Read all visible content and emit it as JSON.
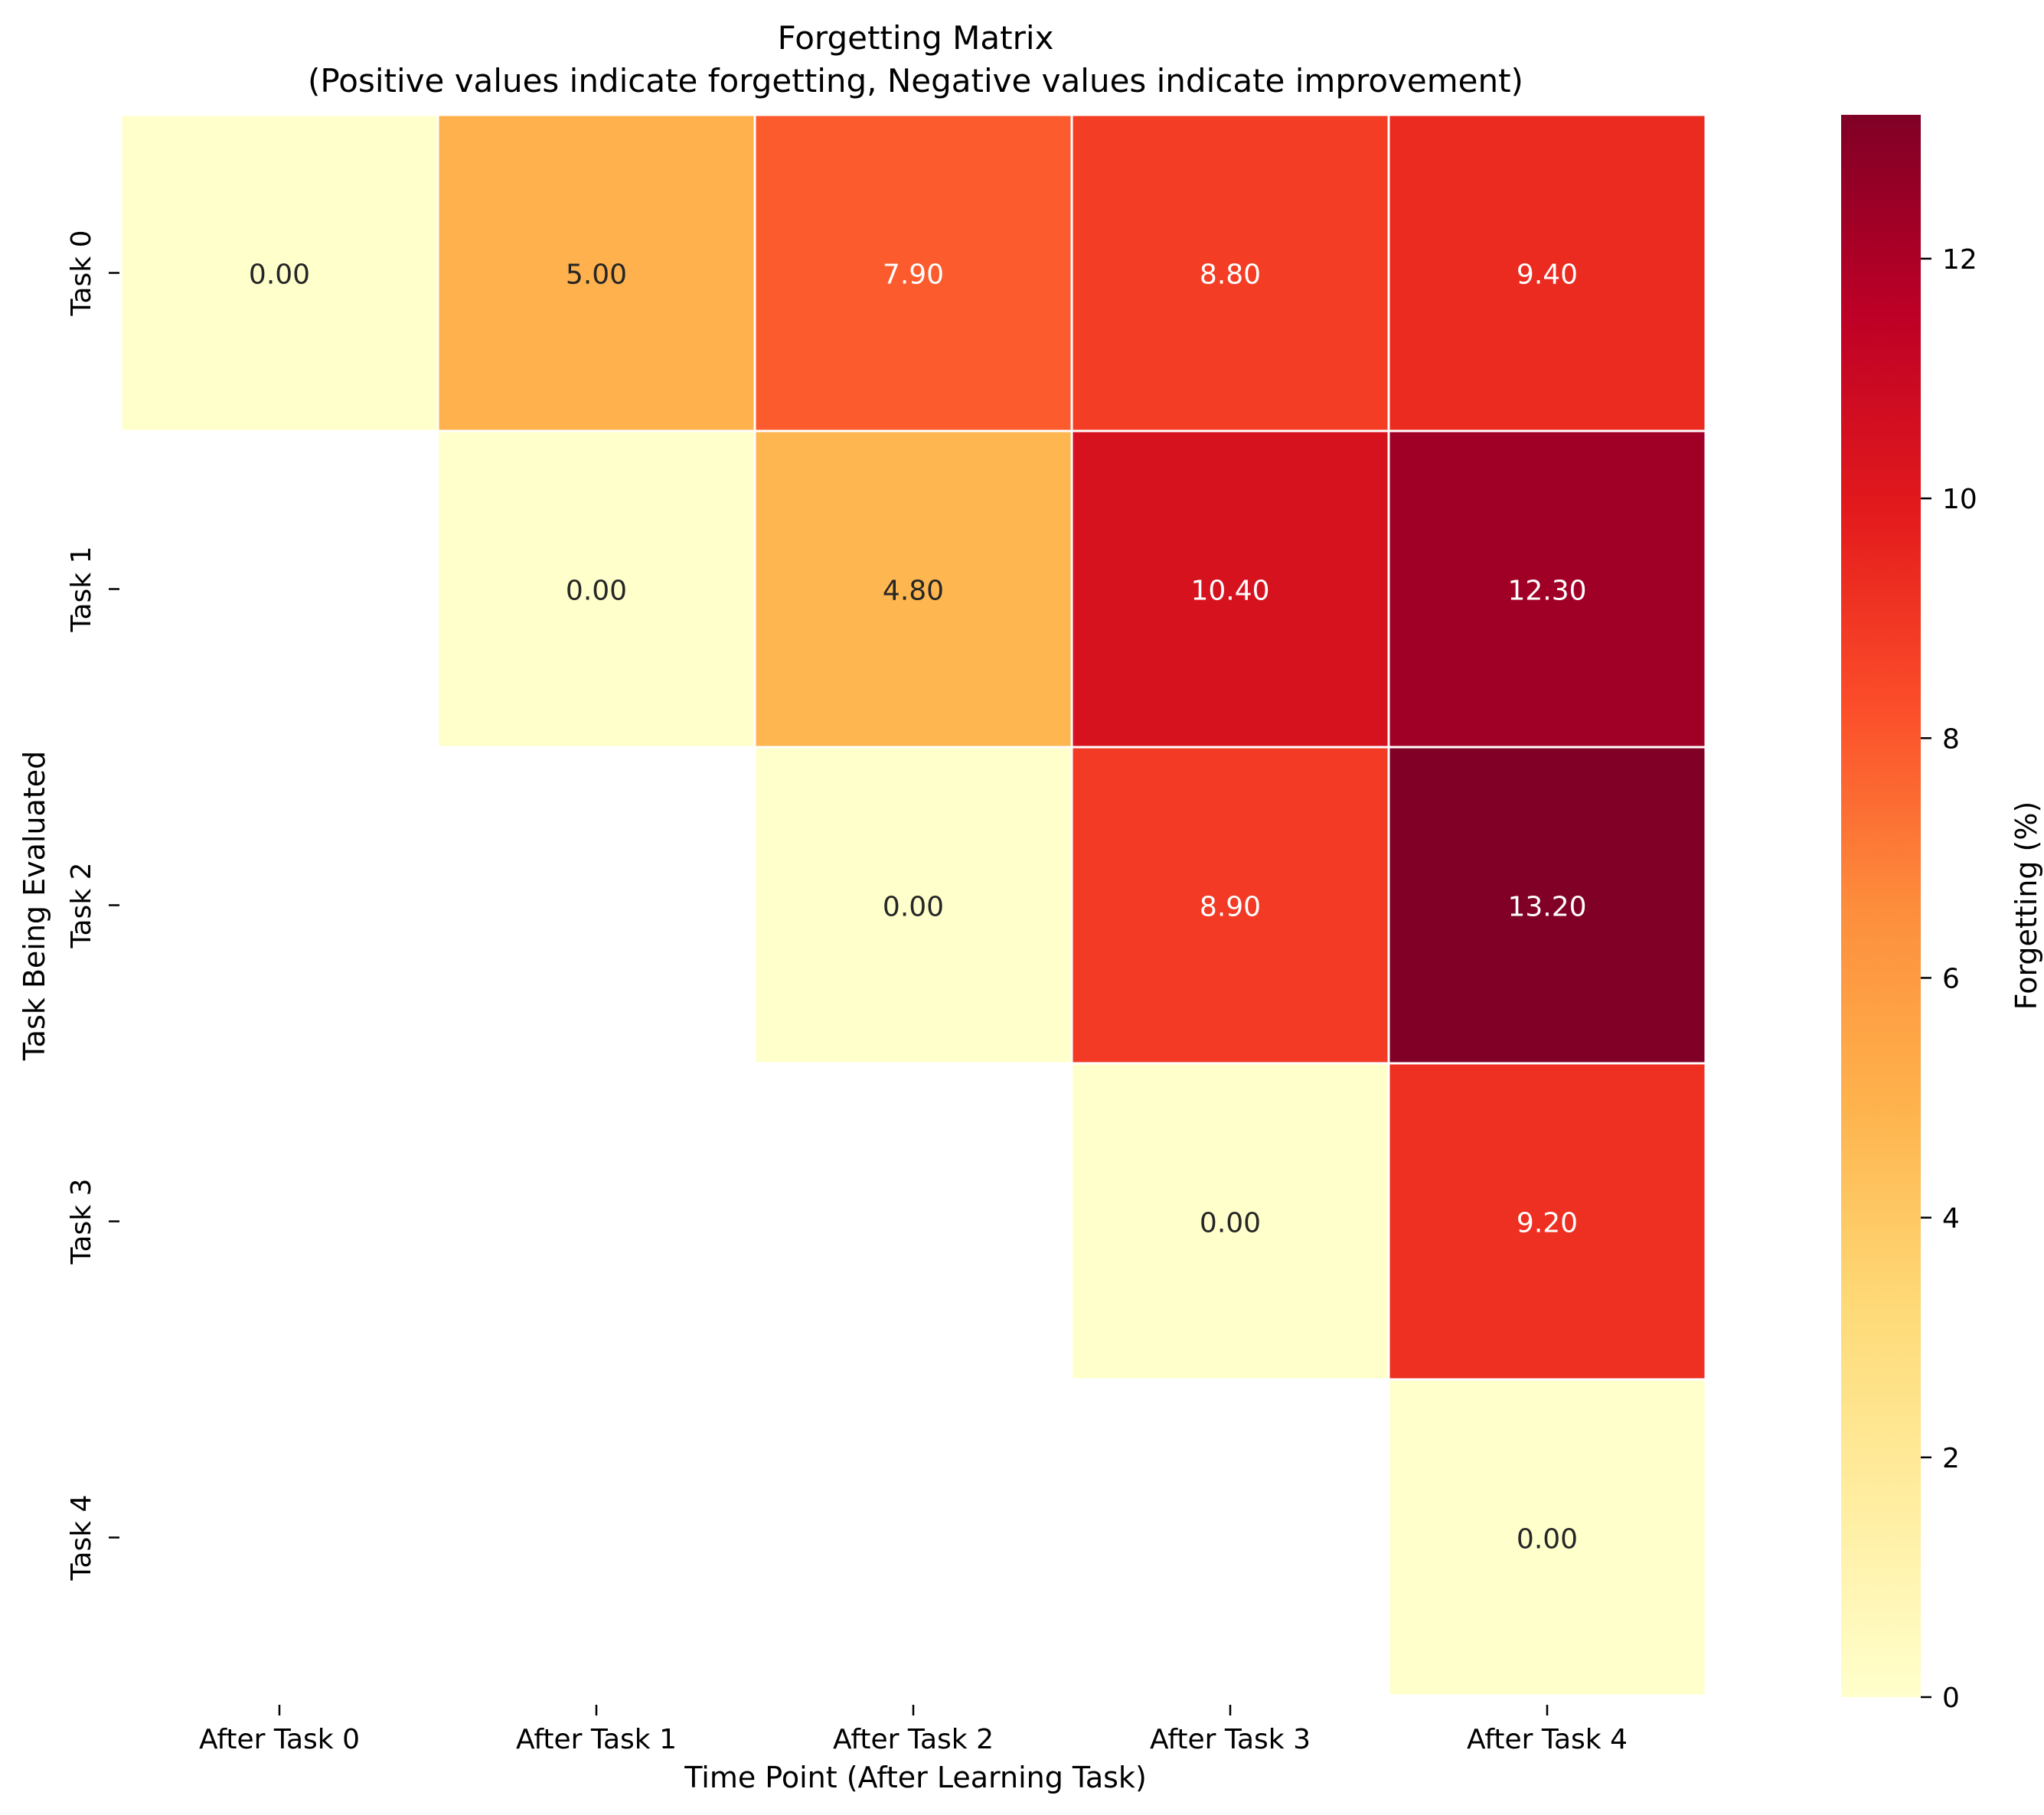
{
  "chart_data": {
    "type": "heatmap",
    "title": "Forgetting Matrix",
    "subtitle": "(Positive values indicate forgetting, Negative values indicate improvement)",
    "xlabel": "Time Point (After Learning Task)",
    "ylabel": "Task Being Evaluated",
    "x_categories": [
      "After Task 0",
      "After Task 1",
      "After Task 2",
      "After Task 3",
      "After Task 4"
    ],
    "y_categories": [
      "Task 0",
      "Task 1",
      "Task 2",
      "Task 3",
      "Task 4"
    ],
    "values": [
      [
        0.0,
        5.0,
        7.9,
        8.8,
        9.4
      ],
      [
        null,
        0.0,
        4.8,
        10.4,
        12.3
      ],
      [
        null,
        null,
        0.0,
        8.9,
        13.2
      ],
      [
        null,
        null,
        null,
        0.0,
        9.2
      ],
      [
        null,
        null,
        null,
        null,
        0.0
      ]
    ],
    "value_format": "0.00",
    "colorbar": {
      "label": "Forgetting (%)",
      "range": [
        0,
        13.2
      ],
      "ticks": [
        0,
        2,
        4,
        6,
        8,
        10,
        12
      ],
      "colormap": "YlOrRd",
      "colors": [
        "#ffffcc",
        "#ffeda0",
        "#fed976",
        "#feb24c",
        "#fd8d3c",
        "#fc4e2a",
        "#e31a1c",
        "#bd0026",
        "#800026"
      ]
    },
    "grid": false,
    "masked_cells": "lower triangle"
  }
}
